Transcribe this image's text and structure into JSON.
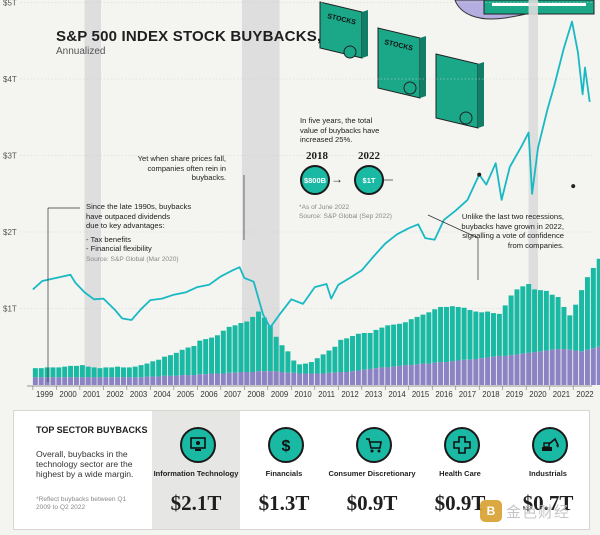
{
  "header": {
    "title": "S&P 500 INDEX STOCK BUYBACKS,",
    "subtitle": "Annualized"
  },
  "annotations": {
    "recession_note": "Yet when share prices fall,\ncompanies often rein in buybacks.",
    "dividends_note_lines": [
      "Since the late 1990s, buybacks",
      "have outpaced dividends",
      "due to key advantages:",
      "",
      "- Tax benefits",
      "- Financial flexibility"
    ],
    "dividends_source": "Source: S&P Global (Mar 2020)",
    "five_years_note_lines": [
      "In five years, the total",
      "value of buybacks have",
      "increased 25%."
    ],
    "year_from": "2018",
    "value_from": "$800B",
    "year_to": "2022",
    "value_to": "$1T",
    "asof_note": "*As of June 2022",
    "asof_source": "Source: S&P Global (Sep 2022)",
    "recent_note_lines": [
      "Unlike the last two recessions,",
      "buybacks have grown in 2022,",
      "signalling a vote of confidence",
      "from companies."
    ]
  },
  "illustration": {
    "label": "STOCKS"
  },
  "colors": {
    "line": "#19b9c4",
    "bar_teal": "#19b9a3",
    "bar_purple": "#8b83c4",
    "recession": "#dcdcdc",
    "background": "#f4f4f1"
  },
  "chart_data": {
    "type": "bar",
    "title": "S&P 500 INDEX STOCK BUYBACKS, Annualized",
    "xlabel": "",
    "ylabel": "",
    "x_labels": [
      "1999",
      "2000",
      "2001",
      "2002",
      "2003",
      "2004",
      "2005",
      "2006",
      "2007",
      "2008",
      "2009",
      "2010",
      "2011",
      "2012",
      "2013",
      "2014",
      "2015",
      "2016",
      "2017",
      "2018",
      "2019",
      "2020",
      "2021",
      "2022"
    ],
    "y_ticks": [
      "$1T",
      "$2T",
      "$3T",
      "$4T",
      "$5T"
    ],
    "y_tick_values": [
      1,
      2,
      3,
      4,
      5
    ],
    "ylim": [
      0,
      5
    ],
    "recession_shading": [
      [
        2001.2,
        2001.9
      ],
      [
        2007.9,
        2009.5
      ],
      [
        2020.1,
        2020.5
      ]
    ],
    "series": [
      {
        "name": "Buybacks (teal bars, quarterly, $T annualized)",
        "start_year": 1999,
        "step": 0.25,
        "values": [
          0.12,
          0.12,
          0.13,
          0.13,
          0.13,
          0.14,
          0.15,
          0.15,
          0.16,
          0.14,
          0.13,
          0.12,
          0.13,
          0.13,
          0.14,
          0.13,
          0.13,
          0.14,
          0.16,
          0.17,
          0.2,
          0.22,
          0.25,
          0.27,
          0.3,
          0.33,
          0.36,
          0.38,
          0.44,
          0.46,
          0.47,
          0.5,
          0.56,
          0.6,
          0.62,
          0.64,
          0.66,
          0.72,
          0.78,
          0.7,
          0.6,
          0.45,
          0.35,
          0.28,
          0.16,
          0.12,
          0.13,
          0.15,
          0.2,
          0.25,
          0.29,
          0.34,
          0.42,
          0.44,
          0.46,
          0.48,
          0.48,
          0.47,
          0.5,
          0.52,
          0.55,
          0.55,
          0.55,
          0.56,
          0.6,
          0.62,
          0.64,
          0.67,
          0.7,
          0.72,
          0.72,
          0.72,
          0.7,
          0.68,
          0.65,
          0.62,
          0.6,
          0.6,
          0.57,
          0.55,
          0.66,
          0.78,
          0.85,
          0.88,
          0.9,
          0.82,
          0.8,
          0.78,
          0.72,
          0.68,
          0.55,
          0.45,
          0.6,
          0.8,
          0.95,
          1.05,
          1.15,
          1.2,
          1.12,
          0.98
        ]
      },
      {
        "name": "Dividends (purple bars, $T annualized)",
        "start_year": 1999,
        "step": 0.25,
        "values": [
          0.1,
          0.1,
          0.1,
          0.1,
          0.1,
          0.1,
          0.1,
          0.1,
          0.1,
          0.1,
          0.1,
          0.1,
          0.1,
          0.1,
          0.1,
          0.1,
          0.1,
          0.1,
          0.1,
          0.11,
          0.11,
          0.11,
          0.12,
          0.12,
          0.12,
          0.13,
          0.13,
          0.13,
          0.14,
          0.14,
          0.15,
          0.15,
          0.15,
          0.16,
          0.16,
          0.17,
          0.17,
          0.17,
          0.18,
          0.18,
          0.18,
          0.18,
          0.17,
          0.16,
          0.16,
          0.15,
          0.15,
          0.15,
          0.15,
          0.15,
          0.16,
          0.16,
          0.17,
          0.17,
          0.18,
          0.19,
          0.2,
          0.21,
          0.22,
          0.23,
          0.23,
          0.24,
          0.25,
          0.26,
          0.26,
          0.27,
          0.28,
          0.28,
          0.29,
          0.3,
          0.3,
          0.31,
          0.32,
          0.33,
          0.33,
          0.34,
          0.35,
          0.36,
          0.37,
          0.38,
          0.38,
          0.39,
          0.4,
          0.41,
          0.42,
          0.43,
          0.44,
          0.45,
          0.46,
          0.47,
          0.47,
          0.46,
          0.45,
          0.44,
          0.46,
          0.48,
          0.5,
          0.52,
          0.54,
          0.56
        ]
      },
      {
        "name": "S&P 500 index level (line)",
        "points": [
          [
            1999,
            1.25
          ],
          [
            1999.4,
            1.36
          ],
          [
            2000,
            1.4
          ],
          [
            2000.6,
            1.44
          ],
          [
            2000.8,
            1.34
          ],
          [
            2001.2,
            1.21
          ],
          [
            2001.6,
            1.12
          ],
          [
            2002,
            1.13
          ],
          [
            2002.5,
            0.98
          ],
          [
            2002.8,
            0.87
          ],
          [
            2003.2,
            0.85
          ],
          [
            2003.6,
            0.99
          ],
          [
            2004,
            1.11
          ],
          [
            2004.5,
            1.13
          ],
          [
            2005,
            1.18
          ],
          [
            2005.5,
            1.21
          ],
          [
            2006,
            1.28
          ],
          [
            2006.5,
            1.31
          ],
          [
            2007,
            1.42
          ],
          [
            2007.5,
            1.5
          ],
          [
            2007.8,
            1.54
          ],
          [
            2008,
            1.4
          ],
          [
            2008.4,
            1.35
          ],
          [
            2008.8,
            0.92
          ],
          [
            2009.1,
            0.75
          ],
          [
            2009.5,
            0.92
          ],
          [
            2010,
            1.12
          ],
          [
            2010.5,
            1.06
          ],
          [
            2011,
            1.28
          ],
          [
            2011.5,
            1.32
          ],
          [
            2011.7,
            1.13
          ],
          [
            2012,
            1.31
          ],
          [
            2012.5,
            1.4
          ],
          [
            2013,
            1.5
          ],
          [
            2013.5,
            1.68
          ],
          [
            2014,
            1.85
          ],
          [
            2014.5,
            1.97
          ],
          [
            2015,
            2.05
          ],
          [
            2015.4,
            2.1
          ],
          [
            2015.7,
            1.92
          ],
          [
            2016.1,
            1.9
          ],
          [
            2016.5,
            2.16
          ],
          [
            2017,
            2.28
          ],
          [
            2017.5,
            2.42
          ],
          [
            2018,
            2.75
          ],
          [
            2018.3,
            2.62
          ],
          [
            2018.7,
            2.9
          ],
          [
            2018.95,
            2.42
          ],
          [
            2019.3,
            2.85
          ],
          [
            2019.8,
            3.12
          ],
          [
            2020.1,
            3.3
          ],
          [
            2020.25,
            2.5
          ],
          [
            2020.5,
            3.1
          ],
          [
            2020.9,
            3.6
          ],
          [
            2021.2,
            3.92
          ],
          [
            2021.6,
            4.4
          ],
          [
            2021.95,
            4.75
          ],
          [
            2022.2,
            4.35
          ],
          [
            2022.4,
            3.8
          ],
          [
            2022.5,
            4.15
          ],
          [
            2022.7,
            3.7
          ]
        ]
      }
    ]
  },
  "panel": {
    "title": "TOP SECTOR BUYBACKS",
    "note": "Overall, buybacks in the technology sector are the highest by a wide margin.",
    "footnote": "*Reflect buybacks between Q1 2009 to Q2 2022",
    "sectors": [
      {
        "name": "Information Technology",
        "value": "$2.1T",
        "icon": "monitor-icon"
      },
      {
        "name": "Financials",
        "value": "$1.3T",
        "icon": "dollar-icon"
      },
      {
        "name": "Consumer Discretionary",
        "value": "$0.9T",
        "icon": "cart-icon"
      },
      {
        "name": "Health Care",
        "value": "$0.9T",
        "icon": "medical-cross-icon"
      },
      {
        "name": "Industrials",
        "value": "$0.7T",
        "icon": "excavator-icon"
      }
    ]
  },
  "watermark": {
    "logo": "B",
    "text": "金色财经"
  }
}
